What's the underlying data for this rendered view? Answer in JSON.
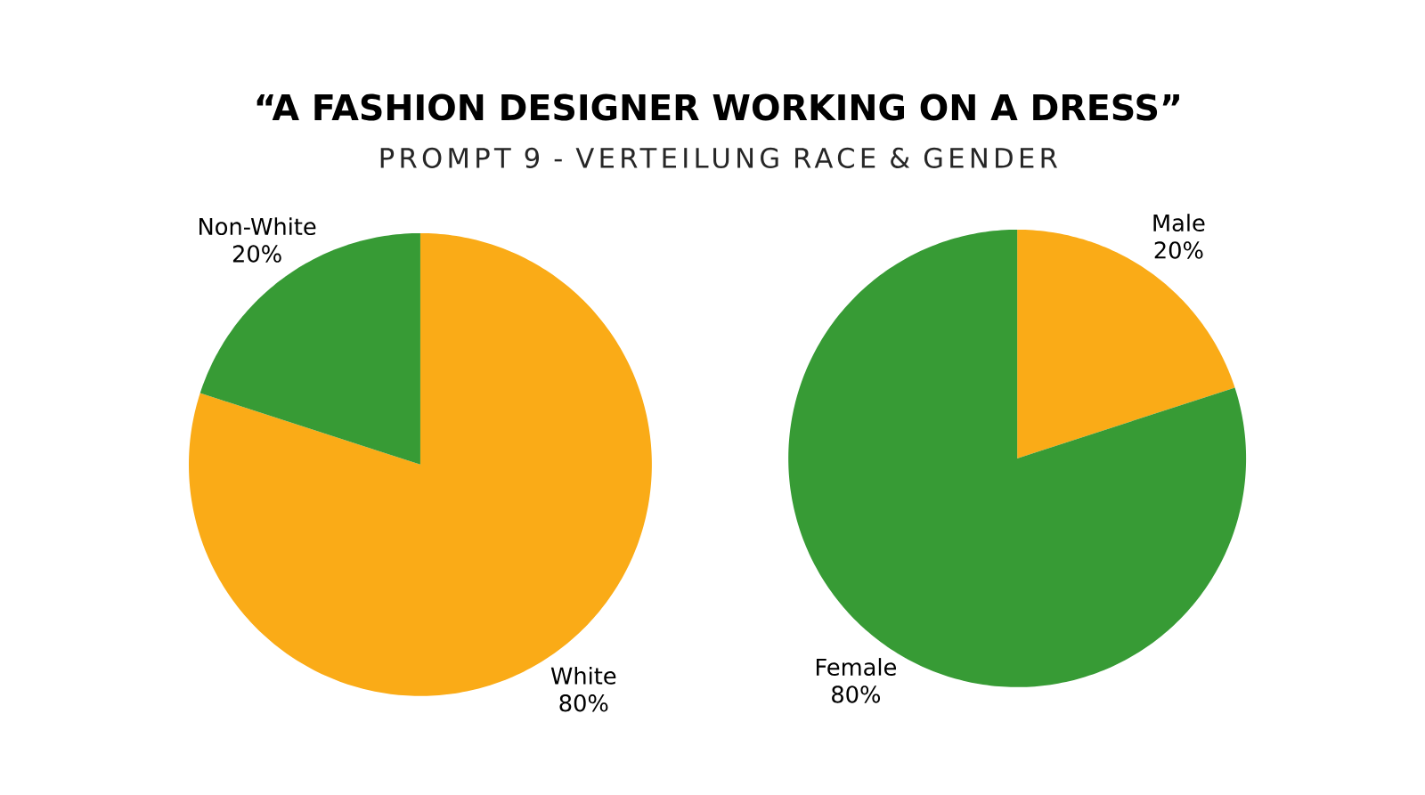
{
  "chart_data": [
    {
      "type": "pie",
      "title": "“A FASHION DESIGNER WORKING ON A DRESS”",
      "subtitle": "PROMPT 9 - VERTEILUNG RACE & GENDER",
      "categories": [
        "White",
        "Non-White"
      ],
      "values": [
        80,
        20
      ],
      "colors": [
        "#faab17",
        "#379b35"
      ],
      "value_labels": [
        "80%",
        "20%"
      ]
    },
    {
      "type": "pie",
      "categories": [
        "Male",
        "Female"
      ],
      "values": [
        20,
        80
      ],
      "colors": [
        "#faab17",
        "#379b35"
      ],
      "value_labels": [
        "20%",
        "80%"
      ]
    }
  ]
}
